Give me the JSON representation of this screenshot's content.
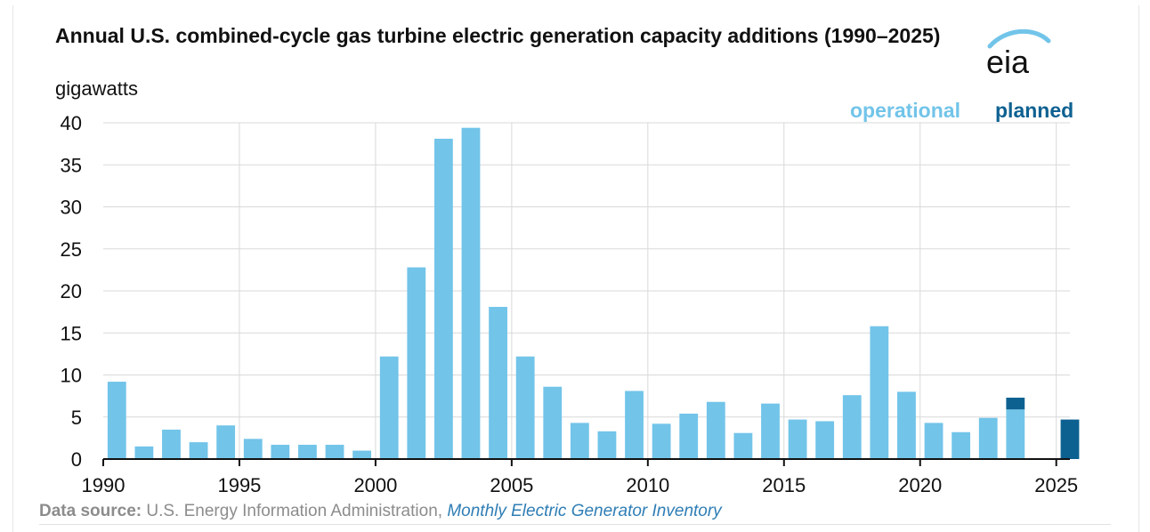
{
  "colors": {
    "operational": "#72c4e9",
    "planned": "#0d6191",
    "grid": "#d9d9d9",
    "axis": "#111111",
    "logo": "#111111",
    "logo_swoosh": "#72c4e9"
  },
  "logo_text": "eia",
  "legend": {
    "operational": "operational",
    "planned": "planned"
  },
  "source": {
    "label": "Data source:",
    "text": " U.S. Energy Information Administration, ",
    "link": "Monthly Electric Generator Inventory"
  },
  "chart_data": {
    "type": "bar",
    "stacked": true,
    "title": "Annual U.S. combined-cycle gas turbine electric generation capacity additions (1990–2025)",
    "ylabel": "gigawatts",
    "ylim": [
      0,
      40
    ],
    "yticks": [
      0,
      5,
      10,
      15,
      20,
      25,
      30,
      35,
      40
    ],
    "xticks": [
      1990,
      1995,
      2000,
      2005,
      2010,
      2015,
      2020,
      2025
    ],
    "grid": true,
    "legend_position": "top-right",
    "categories": [
      1990,
      1991,
      1992,
      1993,
      1994,
      1995,
      1996,
      1997,
      1998,
      1999,
      2000,
      2001,
      2002,
      2003,
      2004,
      2005,
      2006,
      2007,
      2008,
      2009,
      2010,
      2011,
      2012,
      2013,
      2014,
      2015,
      2016,
      2017,
      2018,
      2019,
      2020,
      2021,
      2022,
      2023,
      2024,
      2025
    ],
    "series": [
      {
        "name": "operational",
        "values": [
          9.2,
          1.5,
          3.5,
          2.0,
          4.0,
          2.4,
          1.7,
          1.7,
          1.7,
          1.0,
          12.2,
          22.8,
          38.1,
          39.4,
          18.1,
          12.2,
          8.6,
          4.3,
          3.3,
          8.1,
          4.2,
          5.4,
          6.8,
          3.1,
          6.6,
          4.7,
          4.5,
          7.6,
          15.8,
          8.0,
          4.3,
          3.2,
          4.9,
          5.9,
          0.1,
          0.0
        ]
      },
      {
        "name": "planned",
        "values": [
          0,
          0,
          0,
          0,
          0,
          0,
          0,
          0,
          0,
          0,
          0,
          0,
          0,
          0,
          0,
          0,
          0,
          0,
          0,
          0,
          0,
          0,
          0,
          0,
          0,
          0,
          0,
          0,
          0,
          0,
          0,
          0,
          0,
          1.4,
          0,
          4.7
        ]
      }
    ]
  }
}
